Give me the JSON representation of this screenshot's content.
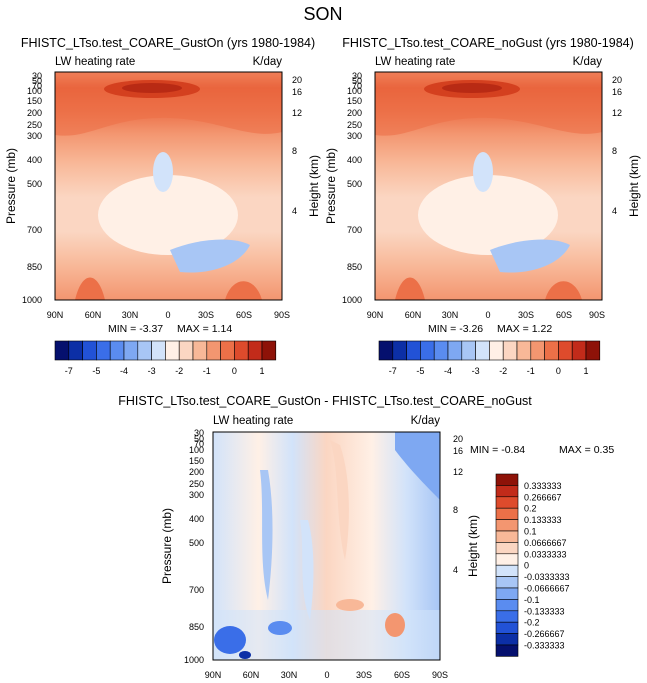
{
  "figure_title": "SON",
  "chart_data": [
    {
      "type": "heatmap",
      "title": "FHISTC_LTso.test_COARE_GustOn (yrs 1980-1984)",
      "left_label": "LW heating rate",
      "right_label": "K/day",
      "ylabel": "Pressure (mb)",
      "y2label": "Height (km)",
      "x_ticks": [
        "90N",
        "60N",
        "30N",
        "0",
        "30S",
        "60S",
        "90S"
      ],
      "y_ticks": [
        "30",
        "50",
        "70",
        "100",
        "150",
        "200",
        "250",
        "300",
        "400",
        "500",
        "700",
        "850",
        "1000"
      ],
      "height_ticks": [
        "20",
        "16",
        "12",
        "8",
        "4"
      ],
      "stats": {
        "min_label": "MIN = -3.37",
        "max_label": "MAX =  1.14",
        "min": -3.37,
        "max": 1.14
      }
    },
    {
      "type": "heatmap",
      "title": "FHISTC_LTso.test_COARE_noGust (yrs 1980-1984)",
      "left_label": "LW heating rate",
      "right_label": "K/day",
      "ylabel": "Pressure (mb)",
      "y2label": "Height (km)",
      "x_ticks": [
        "90N",
        "60N",
        "30N",
        "0",
        "30S",
        "60S",
        "90S"
      ],
      "y_ticks": [
        "30",
        "50",
        "70",
        "100",
        "150",
        "200",
        "250",
        "300",
        "400",
        "500",
        "700",
        "850",
        "1000"
      ],
      "height_ticks": [
        "20",
        "16",
        "12",
        "8",
        "4"
      ],
      "stats": {
        "min_label": "MIN = -3.26",
        "max_label": "MAX =  1.22",
        "min": -3.26,
        "max": 1.22
      }
    },
    {
      "type": "heatmap",
      "title": "FHISTC_LTso.test_COARE_GustOn - FHISTC_LTso.test_COARE_noGust",
      "left_label": "LW heating rate",
      "right_label": "K/day",
      "ylabel": "Pressure (mb)",
      "y2label": "Height (km)",
      "x_ticks": [
        "90N",
        "60N",
        "30N",
        "0",
        "30S",
        "60S",
        "90S"
      ],
      "y_ticks": [
        "30",
        "50",
        "70",
        "100",
        "150",
        "200",
        "250",
        "300",
        "400",
        "500",
        "700",
        "850",
        "1000"
      ],
      "height_ticks": [
        "20",
        "16",
        "12",
        "8",
        "4"
      ],
      "stats": {
        "min_label": "MIN =  -0.84",
        "max_label": "MAX =   0.35",
        "min": -0.84,
        "max": 0.35
      }
    }
  ],
  "colorbar_top": {
    "labels": [
      "-7",
      "-5",
      "-4",
      "-3",
      "-2",
      "-1",
      "0",
      "1"
    ],
    "colors": [
      "#05106e",
      "#0c2fa6",
      "#2252d6",
      "#3a6ee8",
      "#5a8cf0",
      "#7ea8f2",
      "#a8c6f5",
      "#d2e3fa",
      "#fff0e6",
      "#fbd6c2",
      "#f8b898",
      "#f39670",
      "#ec7048",
      "#de4b2c",
      "#c22b1a",
      "#8e1208"
    ]
  },
  "colorbar_diff": {
    "labels": [
      "0.333333",
      "0.266667",
      "0.2",
      "0.133333",
      "0.1",
      "0.0666667",
      "0.0333333",
      "0",
      "-0.0333333",
      "-0.0666667",
      "-0.1",
      "-0.133333",
      "-0.2",
      "-0.266667",
      "-0.333333"
    ],
    "colors": [
      "#8e1208",
      "#c22b1a",
      "#de4b2c",
      "#ec7048",
      "#f39670",
      "#f8b898",
      "#fbd6c2",
      "#fff0e6",
      "#d2e3fa",
      "#a8c6f5",
      "#7ea8f2",
      "#5a8cf0",
      "#3a6ee8",
      "#2252d6",
      "#0c2fa6",
      "#05106e"
    ]
  }
}
